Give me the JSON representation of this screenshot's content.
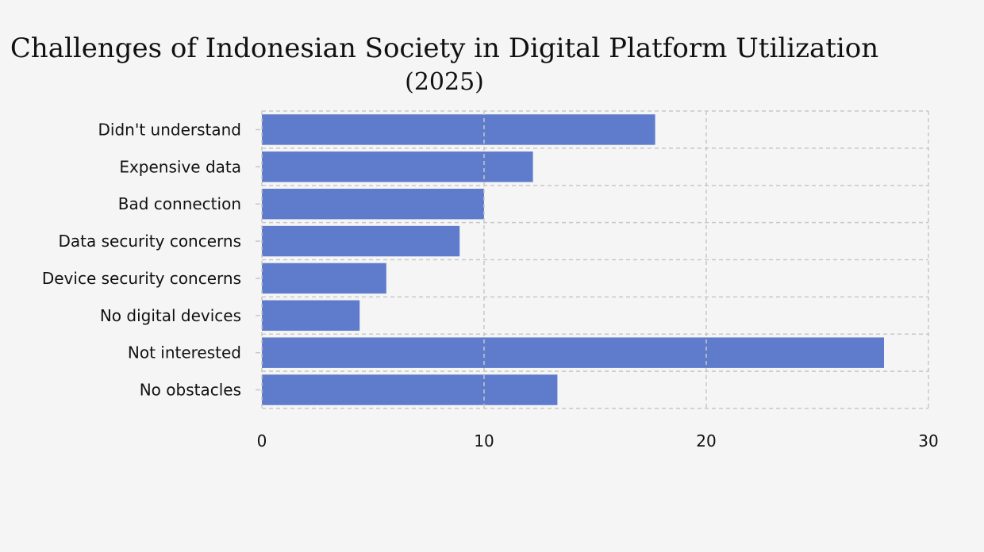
{
  "chart_data": {
    "type": "bar",
    "orientation": "horizontal",
    "title": "Challenges of Indonesian Society in Digital Platform Utilization",
    "subtitle": "(2025)",
    "xlabel": "",
    "ylabel": "",
    "categories": [
      "Didn't understand",
      "Expensive data",
      "Bad connection",
      "Data security concerns",
      "Device security concerns",
      "No digital devices",
      "Not interested",
      "No obstacles"
    ],
    "values": [
      17.7,
      12.2,
      10.0,
      8.9,
      5.6,
      4.4,
      28.0,
      13.3
    ],
    "xlim": [
      0,
      30
    ],
    "xticks": [
      0,
      10,
      20,
      30
    ],
    "grid": true,
    "bar_color": "#5f7bcb",
    "grid_color": "#c8c8c8"
  }
}
